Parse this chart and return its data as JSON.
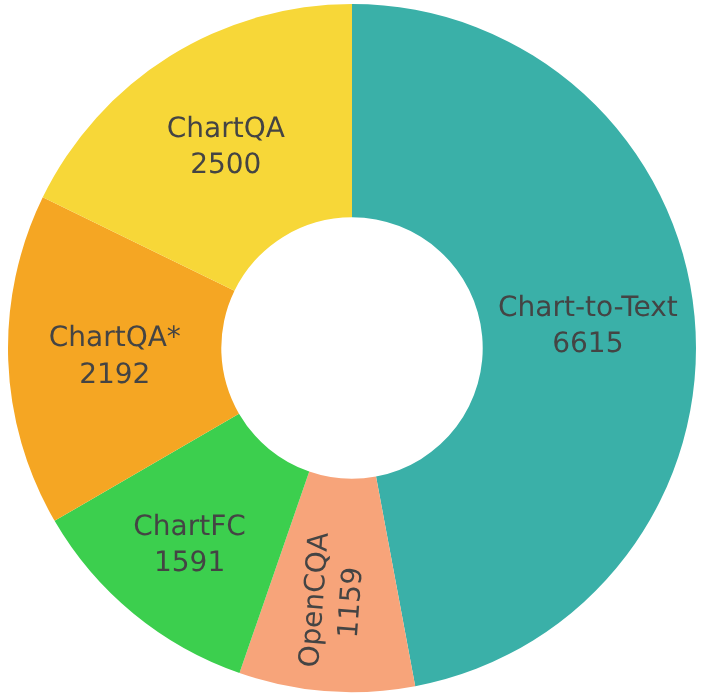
{
  "chart_data": {
    "type": "donut",
    "categories": [
      "Chart-to-Text",
      "OpenCQA",
      "ChartFC",
      "ChartQA*",
      "ChartQA"
    ],
    "values": [
      6615,
      1159,
      1591,
      2192,
      2500
    ],
    "colors": [
      "#3ab0a8",
      "#f7a47a",
      "#3ccf4e",
      "#f5a623",
      "#f7d738"
    ],
    "data_labels": true,
    "legend": false
  }
}
